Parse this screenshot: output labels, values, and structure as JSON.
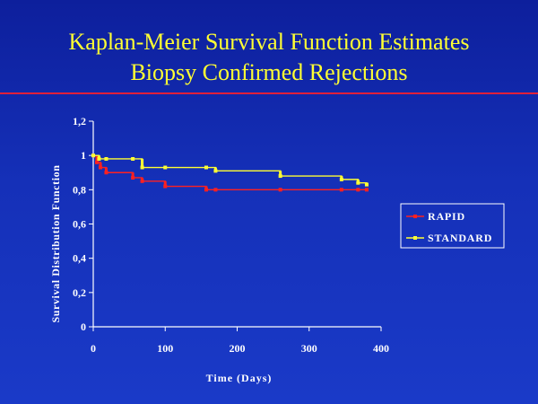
{
  "slide": {
    "title_line1": "Kaplan-Meier Survival Function Estimates",
    "title_line2": "Biopsy Confirmed Rejections",
    "accent_rule_color": "#e0203a",
    "title_color": "#ffff33"
  },
  "chart_data": {
    "type": "line",
    "step": true,
    "title": "",
    "xlabel": "Time (Days)",
    "ylabel": "Survival Distribution Function",
    "xlim": [
      0,
      400
    ],
    "ylim": [
      0,
      1.2
    ],
    "xticks": [
      0,
      100,
      200,
      300,
      400
    ],
    "xtick_labels": [
      "0",
      "100",
      "200",
      "300",
      "400"
    ],
    "yticks": [
      0,
      0.2,
      0.4,
      0.6,
      0.8,
      1,
      1.2
    ],
    "ytick_labels": [
      "0",
      "0,2",
      "0,4",
      "0,6",
      "0,8",
      "1",
      "1,2"
    ],
    "grid": false,
    "legend_position": "right",
    "series": [
      {
        "name": "RAPID",
        "color": "#ff2020",
        "x": [
          0,
          5,
          10,
          18,
          55,
          68,
          100,
          157,
          170,
          260,
          345,
          368,
          380
        ],
        "y": [
          1.0,
          0.96,
          0.93,
          0.9,
          0.87,
          0.85,
          0.82,
          0.8,
          0.8,
          0.8,
          0.8,
          0.8,
          0.8
        ]
      },
      {
        "name": "STANDARD",
        "color": "#ffff33",
        "x": [
          0,
          8,
          18,
          55,
          68,
          100,
          157,
          170,
          260,
          345,
          368,
          380
        ],
        "y": [
          1.0,
          0.98,
          0.98,
          0.98,
          0.93,
          0.93,
          0.93,
          0.91,
          0.88,
          0.86,
          0.84,
          0.83
        ]
      }
    ]
  }
}
